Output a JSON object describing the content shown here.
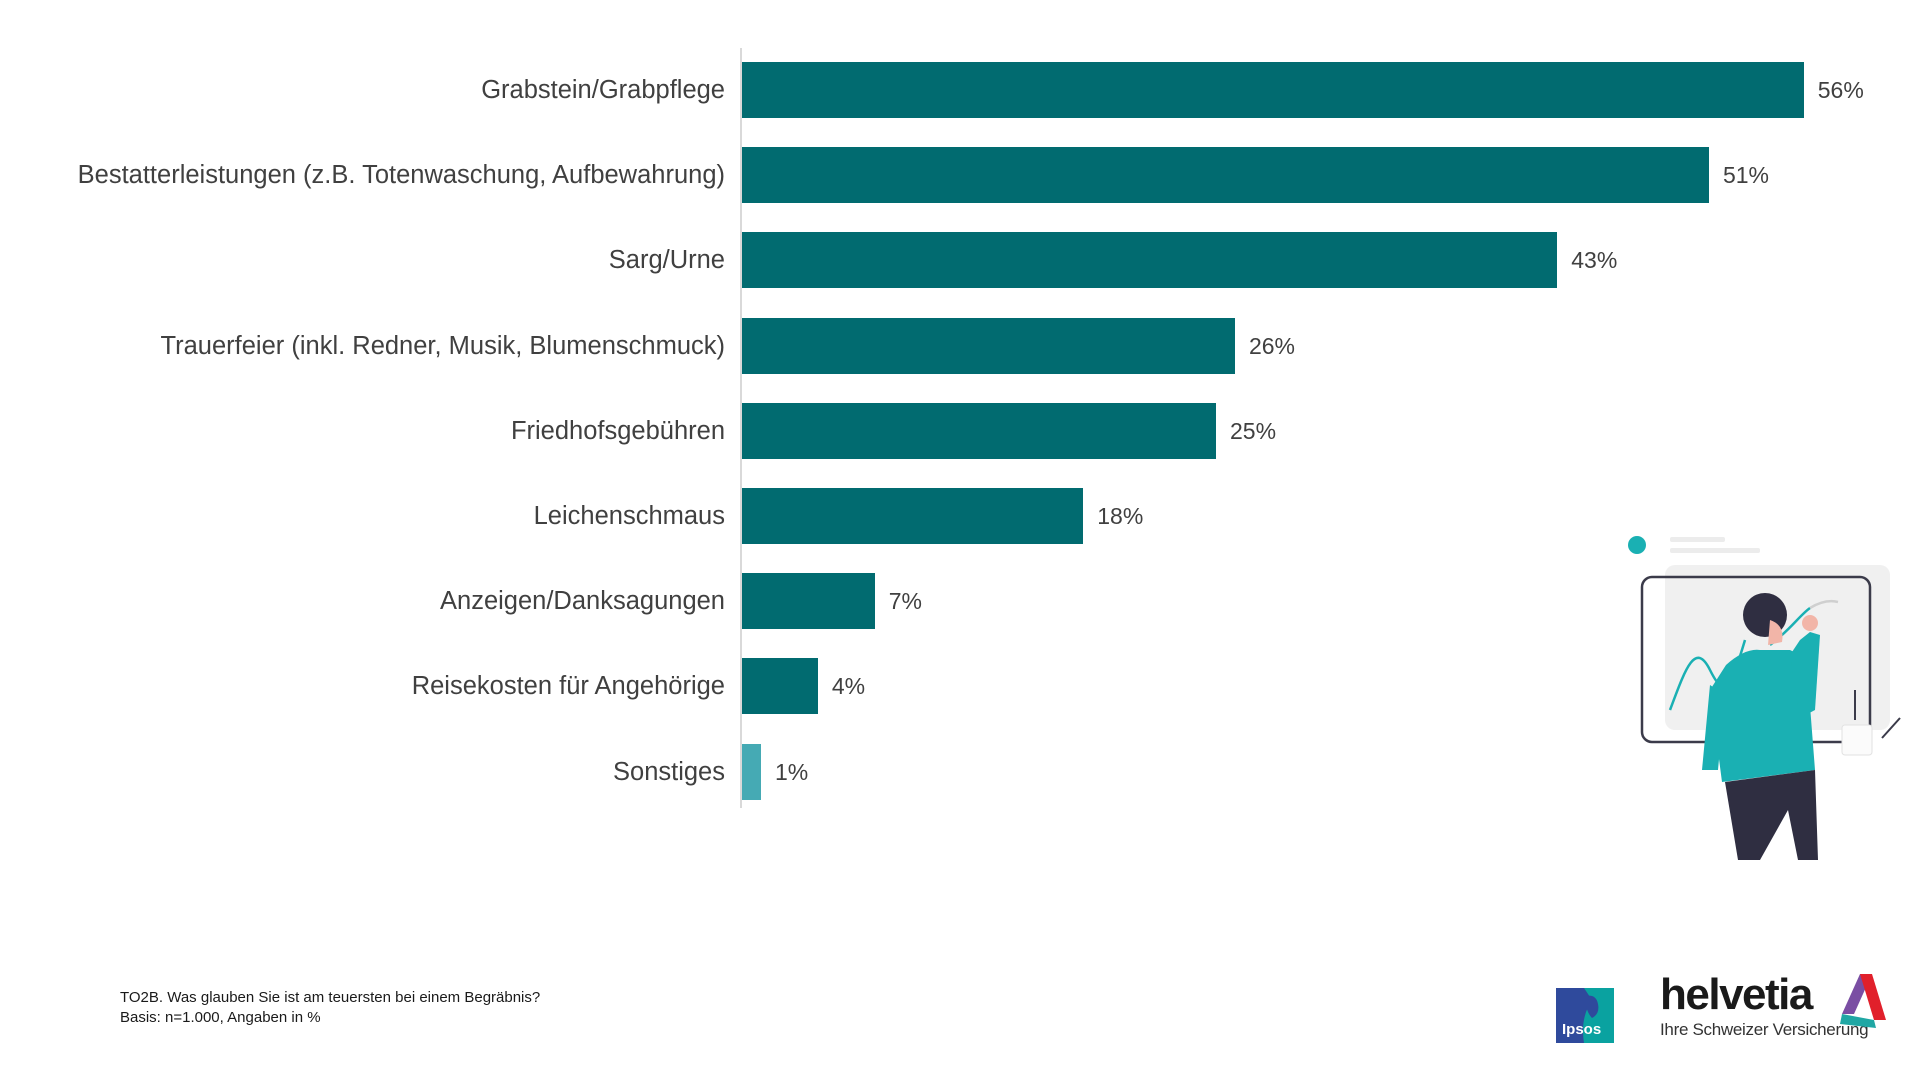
{
  "chart_data": {
    "type": "bar",
    "orientation": "horizontal",
    "title": "",
    "xlabel": "",
    "ylabel": "",
    "xlim": [
      0,
      56
    ],
    "grid": false,
    "categories": [
      "Grabstein/Grabpflege",
      "Bestatterleistungen (z.B. Totenwaschung, Aufbewahrung)",
      "Sarg/Urne",
      "Trauerfeier (inkl. Redner, Musik, Blumenschmuck)",
      "Friedhofsgebühren",
      "Leichenschmaus",
      "Anzeigen/Danksagungen",
      "Reisekosten für Angehörige",
      "Sonstiges"
    ],
    "values": [
      56,
      51,
      43,
      26,
      25,
      18,
      7,
      4,
      1
    ],
    "value_labels": [
      "56%",
      "51%",
      "43%",
      "26%",
      "25%",
      "18%",
      "7%",
      "4%",
      "1%"
    ],
    "colors": [
      "#016b70",
      "#016b70",
      "#016b70",
      "#016b70",
      "#016b70",
      "#016b70",
      "#016b70",
      "#016b70",
      "#45aab4"
    ]
  },
  "footnote": {
    "question": "TO2B. Was glauben Sie ist am teuersten bei einem Begräbnis?",
    "basis": "Basis: n=1.000, Angaben in %"
  },
  "logos": {
    "ipsos": "Ipsos",
    "helvetia": "helvetia",
    "helvetia_tagline": "Ihre Schweizer Versicherung"
  }
}
